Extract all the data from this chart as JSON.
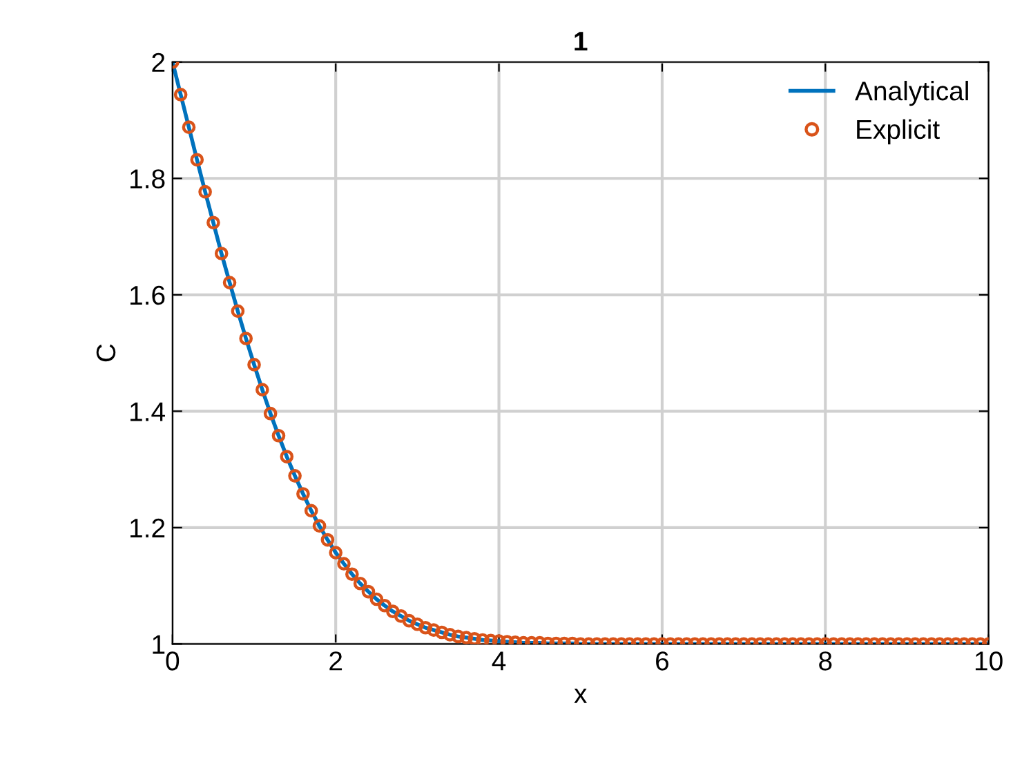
{
  "chart_data": {
    "type": "line",
    "title": "1",
    "xlabel": "x",
    "ylabel": "C",
    "x": [
      0,
      0.1,
      0.2,
      0.3,
      0.4,
      0.5,
      0.6,
      0.7,
      0.8,
      0.9,
      1,
      1.1,
      1.2,
      1.3,
      1.4,
      1.5,
      1.6,
      1.7,
      1.8,
      1.9,
      2,
      2.1,
      2.2,
      2.3,
      2.4,
      2.5,
      2.6,
      2.7,
      2.8,
      2.9,
      3,
      3.1,
      3.2,
      3.3,
      3.4,
      3.5,
      3.6,
      3.7,
      3.8,
      3.9,
      4,
      4.1,
      4.2,
      4.3,
      4.4,
      4.5,
      4.6,
      4.7,
      4.8,
      4.9,
      5,
      5.1,
      5.2,
      5.3,
      5.4,
      5.5,
      5.6,
      5.7,
      5.8,
      5.9,
      6,
      6.1,
      6.2,
      6.3,
      6.4,
      6.5,
      6.6,
      6.7,
      6.8,
      6.9,
      7,
      7.1,
      7.2,
      7.3,
      7.4,
      7.5,
      7.6,
      7.7,
      7.8,
      7.9,
      8,
      8.1,
      8.2,
      8.3,
      8.4,
      8.5,
      8.6,
      8.7,
      8.8,
      8.9,
      9,
      9.1,
      9.2,
      9.3,
      9.4,
      9.5,
      9.6,
      9.7,
      9.8,
      9.9,
      10
    ],
    "series": [
      {
        "name": "Analytical",
        "color": "#0072bd",
        "marker": "none",
        "line_style": "solid",
        "values": [
          2.0,
          1.944,
          1.888,
          1.832,
          1.777,
          1.724,
          1.671,
          1.621,
          1.572,
          1.525,
          1.48,
          1.437,
          1.396,
          1.358,
          1.322,
          1.289,
          1.258,
          1.229,
          1.203,
          1.179,
          1.157,
          1.138,
          1.12,
          1.104,
          1.09,
          1.077,
          1.066,
          1.056,
          1.048,
          1.04,
          1.034,
          1.028,
          1.024,
          1.02,
          1.016,
          1.013,
          1.011,
          1.009,
          1.007,
          1.006,
          1.005,
          1.004,
          1.003,
          1.002,
          1.002,
          1.002,
          1.001,
          1.001,
          1.001,
          1.001,
          1,
          1,
          1,
          1,
          1,
          1,
          1,
          1,
          1,
          1,
          1,
          1,
          1,
          1,
          1,
          1,
          1,
          1,
          1,
          1,
          1,
          1,
          1,
          1,
          1,
          1,
          1,
          1,
          1,
          1,
          1,
          1,
          1,
          1,
          1,
          1,
          1,
          1,
          1,
          1,
          1,
          1,
          1,
          1,
          1,
          1,
          1,
          1,
          1,
          1,
          1
        ]
      },
      {
        "name": "Explicit",
        "type": "scatter",
        "color": "#d95319",
        "marker": "circle",
        "values": [
          2.0,
          1.944,
          1.888,
          1.832,
          1.777,
          1.724,
          1.671,
          1.621,
          1.572,
          1.525,
          1.48,
          1.437,
          1.396,
          1.358,
          1.322,
          1.289,
          1.258,
          1.229,
          1.203,
          1.179,
          1.157,
          1.138,
          1.12,
          1.104,
          1.09,
          1.077,
          1.066,
          1.056,
          1.048,
          1.04,
          1.034,
          1.028,
          1.024,
          1.02,
          1.016,
          1.013,
          1.011,
          1.009,
          1.007,
          1.006,
          1.005,
          1.004,
          1.003,
          1.002,
          1.002,
          1.002,
          1.001,
          1.001,
          1.001,
          1.001,
          1,
          1,
          1,
          1,
          1,
          1,
          1,
          1,
          1,
          1,
          1,
          1,
          1,
          1,
          1,
          1,
          1,
          1,
          1,
          1,
          1,
          1,
          1,
          1,
          1,
          1,
          1,
          1,
          1,
          1,
          1,
          1,
          1,
          1,
          1,
          1,
          1,
          1,
          1,
          1,
          1,
          1,
          1,
          1,
          1,
          1,
          1,
          1,
          1,
          1,
          1
        ]
      }
    ],
    "xlim": [
      0,
      10
    ],
    "xticks": [
      0,
      2,
      4,
      6,
      8,
      10
    ],
    "ylim": [
      1,
      2
    ],
    "yticks": [
      1,
      1.2,
      1.4,
      1.6,
      1.8,
      2
    ],
    "grid": true,
    "legend": "top right"
  }
}
